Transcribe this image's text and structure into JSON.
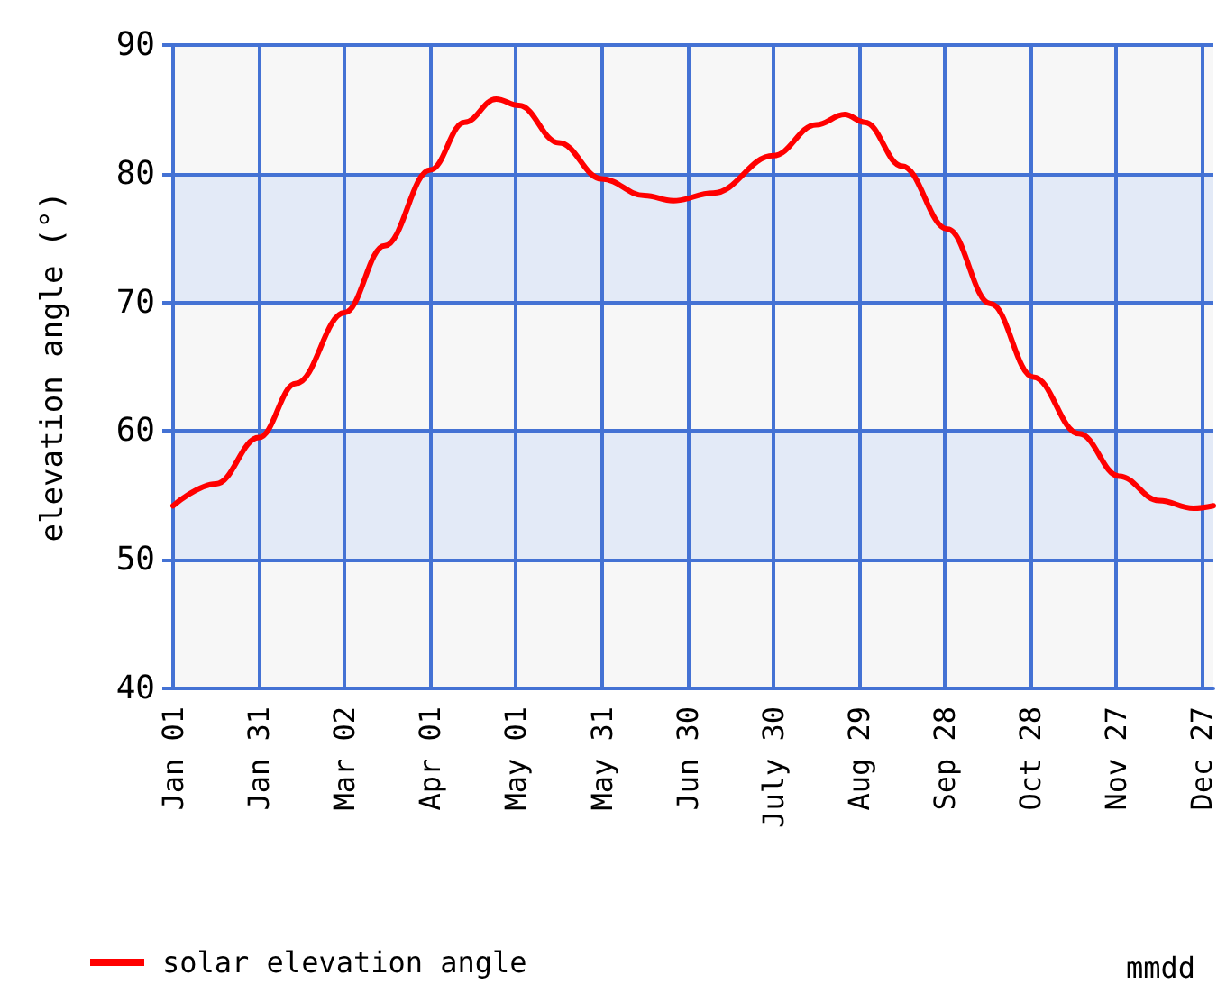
{
  "chart_data": {
    "type": "line",
    "xlabel": "mmdd",
    "ylabel": "elevation angle (°)",
    "x": [
      "--01-01",
      "--01-16",
      "--01-31",
      "--02-13",
      "--03-02",
      "--03-16",
      "--04-01",
      "--04-13",
      "--04-24",
      "--05-02",
      "--05-16",
      "--05-31",
      "--06-15",
      "--06-25",
      "--07-09",
      "--07-30",
      "--08-14",
      "--08-24",
      "--08-31",
      "--09-13",
      "--09-29",
      "--10-14",
      "--10-29",
      "--11-14",
      "--11-28",
      "--12-12",
      "--12-24",
      "--12-31"
    ],
    "series": [
      {
        "name": "solar elevation angle",
        "color": "#ff0000",
        "values": [
          54.2,
          55.9,
          59.5,
          63.7,
          69.2,
          74.4,
          80.3,
          84.0,
          85.8,
          85.3,
          82.4,
          79.6,
          78.3,
          77.9,
          78.5,
          81.4,
          83.8,
          84.6,
          84.0,
          80.6,
          75.7,
          69.9,
          64.2,
          59.8,
          56.5,
          54.6,
          54.0,
          54.2
        ]
      }
    ],
    "xlim": [
      "--01-01",
      "--12-31"
    ],
    "xticks": [
      {
        "value": "--01-01",
        "label": "Jan 01"
      },
      {
        "value": "--01-31",
        "label": "Jan 31"
      },
      {
        "value": "--03-02",
        "label": "Mar 02"
      },
      {
        "value": "--04-01",
        "label": "Apr 01"
      },
      {
        "value": "--05-01",
        "label": "May 01"
      },
      {
        "value": "--05-31",
        "label": "May 31"
      },
      {
        "value": "--06-30",
        "label": "Jun 30"
      },
      {
        "value": "--07-30",
        "label": "July 30"
      },
      {
        "value": "--08-29",
        "label": "Aug 29"
      },
      {
        "value": "--09-28",
        "label": "Sep 28"
      },
      {
        "value": "--10-28",
        "label": "Oct 28"
      },
      {
        "value": "--11-27",
        "label": "Nov 27"
      },
      {
        "value": "--12-27",
        "label": "Dec 27"
      }
    ],
    "ylim": [
      40,
      90
    ],
    "yticks": [
      40,
      50,
      60,
      70,
      80,
      90
    ],
    "grid": true,
    "legend": "bottom left",
    "marker": "none",
    "line_style": "solid"
  }
}
